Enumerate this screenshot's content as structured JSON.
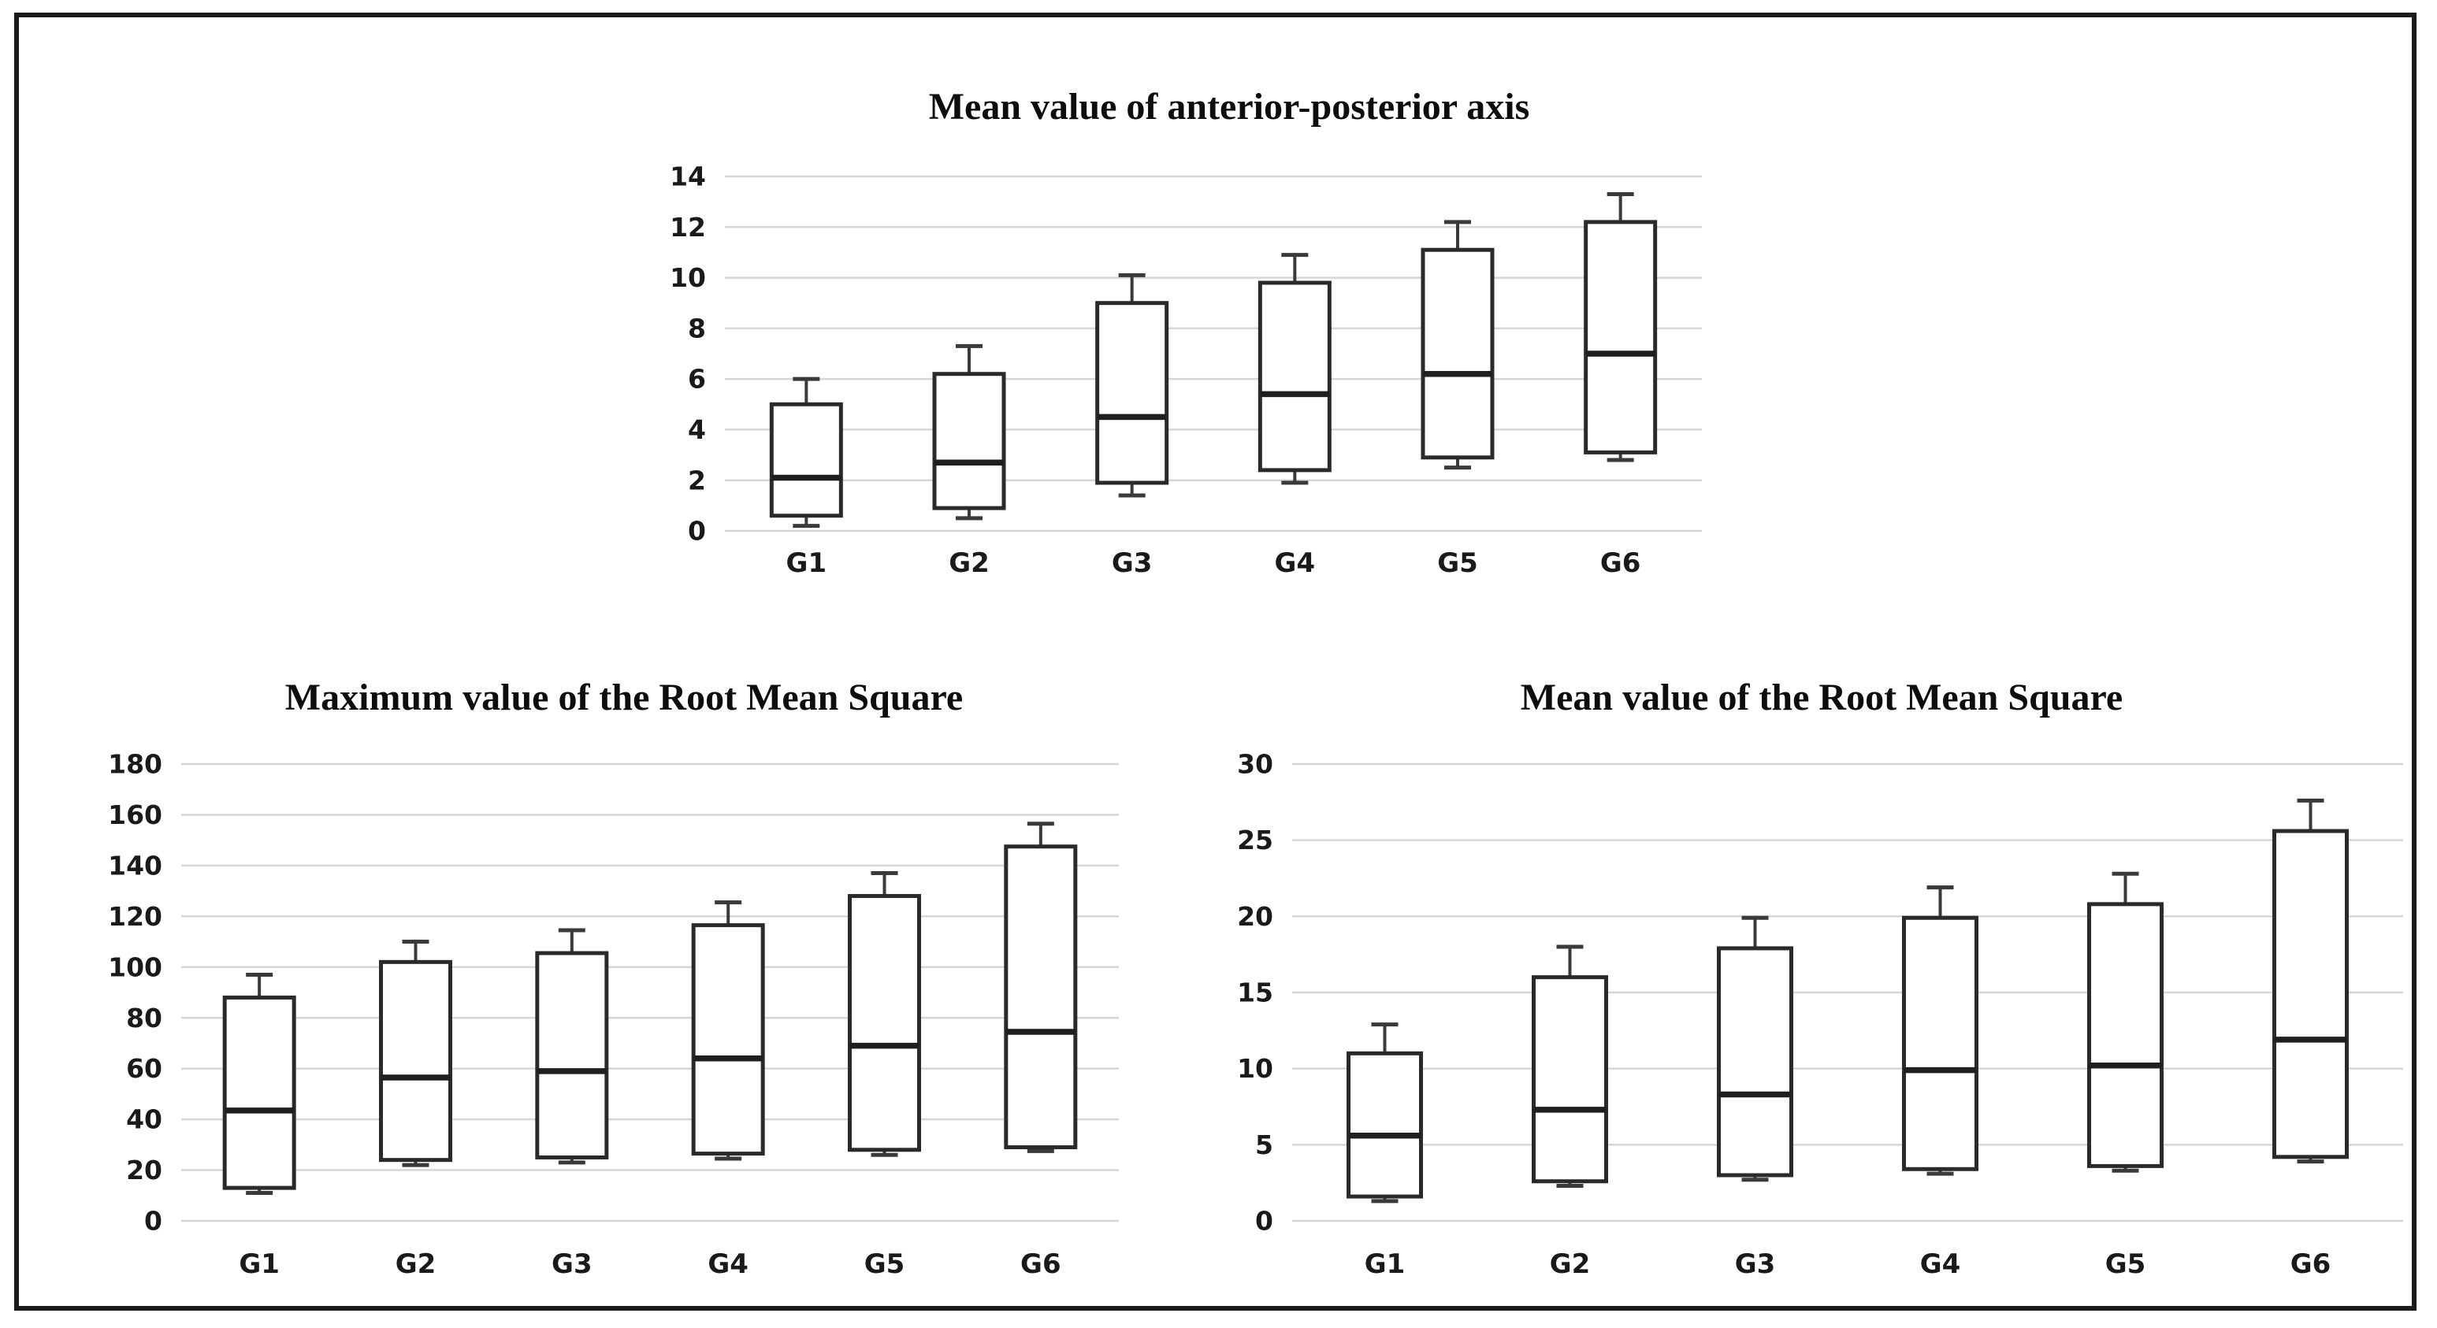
{
  "page": {
    "background": "#ffffff",
    "frame_color": "#1b1b1b"
  },
  "colors": {
    "gridline": "#d6d6d6",
    "box_stroke": "#2a2a2a",
    "box_fill": "#ffffff",
    "median": "#1f1f1f",
    "whisker": "#3a3a3a",
    "tick_text": "#1a1a1a"
  },
  "chart_data": [
    {
      "type": "box",
      "title": "Mean value of anterior-posterior axis",
      "categories": [
        "G1",
        "G2",
        "G3",
        "G4",
        "G5",
        "G6"
      ],
      "xlabel": "",
      "ylabel": "",
      "ylim": [
        0,
        14
      ],
      "yticks": [
        0,
        2,
        4,
        6,
        8,
        10,
        12,
        14
      ],
      "grid": "horizontal",
      "legend": false,
      "groups": [
        {
          "label": "G1",
          "whisker_low": 0.2,
          "q1": 0.6,
          "median": 2.1,
          "q3": 5.0,
          "whisker_high": 6.0
        },
        {
          "label": "G2",
          "whisker_low": 0.5,
          "q1": 0.9,
          "median": 2.7,
          "q3": 6.2,
          "whisker_high": 7.3
        },
        {
          "label": "G3",
          "whisker_low": 1.4,
          "q1": 1.9,
          "median": 4.5,
          "q3": 9.0,
          "whisker_high": 10.1
        },
        {
          "label": "G4",
          "whisker_low": 1.9,
          "q1": 2.4,
          "median": 5.4,
          "q3": 9.8,
          "whisker_high": 10.9
        },
        {
          "label": "G5",
          "whisker_low": 2.5,
          "q1": 2.9,
          "median": 6.2,
          "q3": 11.1,
          "whisker_high": 12.2
        },
        {
          "label": "G6",
          "whisker_low": 2.8,
          "q1": 3.1,
          "median": 7.0,
          "q3": 12.2,
          "whisker_high": 13.3
        }
      ]
    },
    {
      "type": "box",
      "title": "Maximum value of the Root Mean Square",
      "categories": [
        "G1",
        "G2",
        "G3",
        "G4",
        "G5",
        "G6"
      ],
      "xlabel": "",
      "ylabel": "",
      "ylim": [
        0,
        180
      ],
      "yticks": [
        0,
        20,
        40,
        60,
        80,
        100,
        120,
        140,
        160,
        180
      ],
      "grid": "horizontal",
      "legend": false,
      "groups": [
        {
          "label": "G1",
          "whisker_low": 11,
          "q1": 13,
          "median": 43.5,
          "q3": 88,
          "whisker_high": 97
        },
        {
          "label": "G2",
          "whisker_low": 22,
          "q1": 24,
          "median": 56.5,
          "q3": 102,
          "whisker_high": 110
        },
        {
          "label": "G3",
          "whisker_low": 23,
          "q1": 25,
          "median": 59,
          "q3": 105.5,
          "whisker_high": 114.5
        },
        {
          "label": "G4",
          "whisker_low": 24.5,
          "q1": 26.5,
          "median": 64,
          "q3": 116.5,
          "whisker_high": 125.5
        },
        {
          "label": "G5",
          "whisker_low": 26,
          "q1": 28,
          "median": 69,
          "q3": 128,
          "whisker_high": 137
        },
        {
          "label": "G6",
          "whisker_low": 27.5,
          "q1": 29,
          "median": 74.5,
          "q3": 147.5,
          "whisker_high": 156.5
        }
      ]
    },
    {
      "type": "box",
      "title": "Mean value of the Root Mean Square",
      "categories": [
        "G1",
        "G2",
        "G3",
        "G4",
        "G5",
        "G6"
      ],
      "xlabel": "",
      "ylabel": "",
      "ylim": [
        0,
        30
      ],
      "yticks": [
        0,
        5,
        10,
        15,
        20,
        25,
        30
      ],
      "grid": "horizontal",
      "legend": false,
      "groups": [
        {
          "label": "G1",
          "whisker_low": 1.3,
          "q1": 1.6,
          "median": 5.6,
          "q3": 11.0,
          "whisker_high": 12.9
        },
        {
          "label": "G2",
          "whisker_low": 2.3,
          "q1": 2.6,
          "median": 7.3,
          "q3": 16.0,
          "whisker_high": 18.0
        },
        {
          "label": "G3",
          "whisker_low": 2.7,
          "q1": 3.0,
          "median": 8.3,
          "q3": 17.9,
          "whisker_high": 19.9
        },
        {
          "label": "G4",
          "whisker_low": 3.1,
          "q1": 3.4,
          "median": 9.9,
          "q3": 19.9,
          "whisker_high": 21.9
        },
        {
          "label": "G5",
          "whisker_low": 3.3,
          "q1": 3.6,
          "median": 10.2,
          "q3": 20.8,
          "whisker_high": 22.8
        },
        {
          "label": "G6",
          "whisker_low": 3.9,
          "q1": 4.2,
          "median": 11.9,
          "q3": 25.6,
          "whisker_high": 27.6
        }
      ]
    }
  ]
}
